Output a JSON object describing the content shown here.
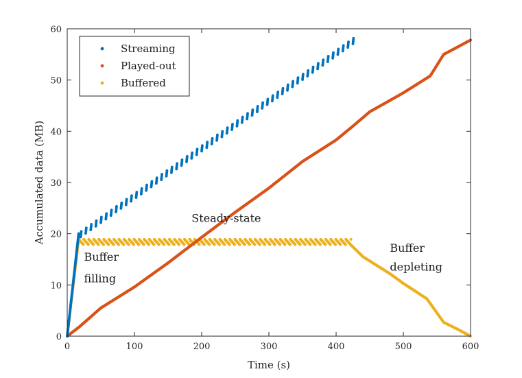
{
  "chart_data": {
    "type": "scatter",
    "xlabel": "Time (s)",
    "ylabel": "Accumulated data (MB)",
    "xlim": [
      0,
      600
    ],
    "ylim": [
      0,
      60
    ],
    "xticks": [
      0,
      100,
      200,
      300,
      400,
      500,
      600
    ],
    "yticks": [
      0,
      10,
      20,
      30,
      40,
      50,
      60
    ],
    "grid": false,
    "legend_position": "top-left",
    "series": [
      {
        "name": "Streaming",
        "color": "#0072BD",
        "initial_ramp": [
          [
            0,
            0
          ],
          [
            17,
            20
          ]
        ],
        "chunk_start": 20,
        "chunk_end": 425,
        "chunk_interval": 7.5,
        "chunk_start_mb": 19.9,
        "chunk_end_mb": 57.6
      },
      {
        "name": "Played-out",
        "color": "#D95319",
        "x": [
          0,
          17,
          50,
          100,
          150,
          200,
          250,
          300,
          350,
          400,
          425,
          450,
          500,
          540,
          560,
          600
        ],
        "y": [
          0,
          1.7,
          5.5,
          9.6,
          14.3,
          19.3,
          24.2,
          28.9,
          34.1,
          38.3,
          41.0,
          43.8,
          47.5,
          50.8,
          55.0,
          57.8
        ]
      },
      {
        "name": "Buffered",
        "color": "#EDB120",
        "fill_ramp": [
          [
            0,
            0
          ],
          [
            17,
            18.6
          ]
        ],
        "steady_start": 17,
        "steady_end": 422,
        "steady_low": 17.8,
        "steady_high": 18.9,
        "sawtooth_period": 7.5,
        "depletion_x": [
          422,
          440,
          480,
          500,
          535,
          560,
          580,
          600
        ],
        "depletion_y": [
          17.8,
          15.5,
          12.2,
          10.3,
          7.3,
          2.7,
          1.4,
          0
        ]
      }
    ],
    "annotations": [
      {
        "text": "Steady-state",
        "x": 185,
        "y": 22.3
      },
      {
        "text": "Buffer",
        "x": 25,
        "y": 14.7
      },
      {
        "text": "filling",
        "x": 25,
        "y": 10.5
      },
      {
        "text": "Buffer",
        "x": 480,
        "y": 16.5
      },
      {
        "text": "depleting",
        "x": 480,
        "y": 12.8
      }
    ]
  }
}
